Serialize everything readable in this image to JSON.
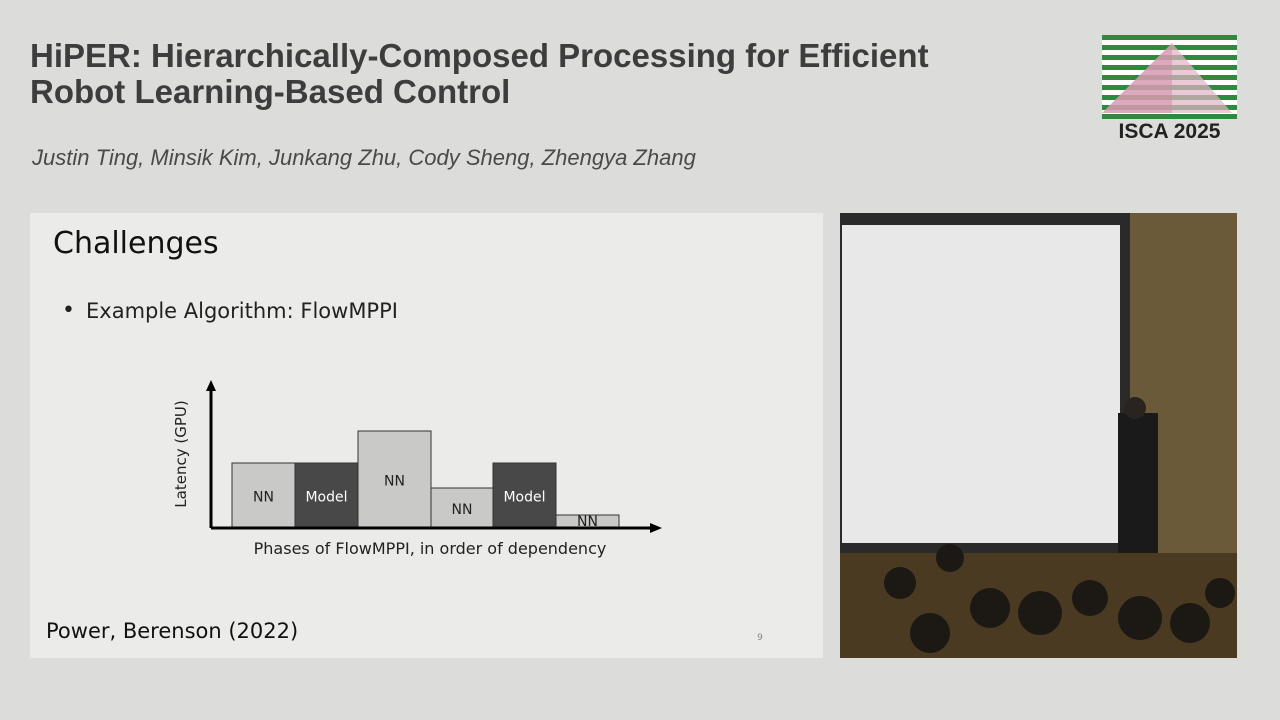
{
  "header": {
    "title_line1": "HiPER: Hierarchically-Composed Processing for Efficient",
    "title_line2": "Robot Learning-Based Control",
    "authors": "Justin Ting, Minsik Kim, Junkang Zhu, Cody Sheng, Zhengya Zhang",
    "logo_text": "ISCA 2025"
  },
  "slide": {
    "title": "Challenges",
    "bullet": "Example Algorithm: FlowMPPI",
    "diagram": {
      "y_label": "Latency (GPU)",
      "x_label": "Phases of FlowMPPI, in order of dependency",
      "bars": [
        "NN",
        "Model",
        "NN",
        "NN",
        "Model",
        "NN"
      ]
    },
    "citation": "Power, Berenson (2022)",
    "page_number": "9"
  }
}
